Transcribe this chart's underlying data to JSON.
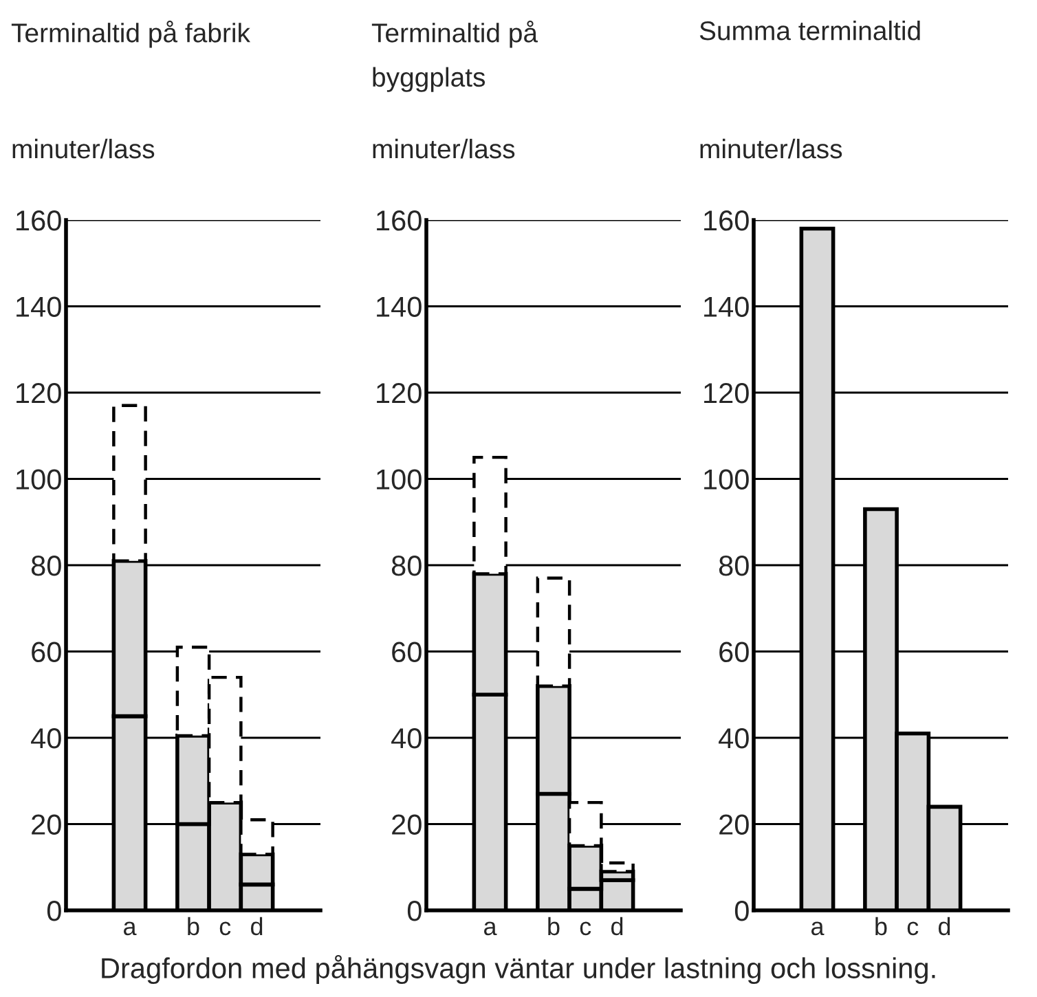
{
  "chart_data": [
    {
      "type": "bar",
      "title": "Terminaltid på fabrik",
      "ylabel": "minuter/lass",
      "categories": [
        "a",
        null,
        "b",
        "c",
        "d"
      ],
      "stacked": true,
      "ylim": [
        0,
        160
      ],
      "yticks": [
        0,
        20,
        40,
        60,
        80,
        100,
        120,
        140,
        160
      ],
      "grid": "y",
      "series": [
        {
          "color": "#d9d9d9",
          "line_style": "solid",
          "values": [
            45,
            null,
            20,
            25,
            6
          ]
        },
        {
          "color": "#d9d9d9",
          "line_style": "solid",
          "values": [
            36,
            null,
            20.5,
            0,
            7
          ]
        },
        {
          "color": "#ffffff",
          "line_style": "dashed",
          "values": [
            36,
            null,
            20.5,
            29,
            8
          ]
        }
      ],
      "annotations": [
        "Dragfordon med påhängsvagn väntar under lastning och lossning."
      ]
    },
    {
      "type": "bar",
      "title": "Terminaltid på\nbyggplats",
      "ylabel": "minuter/lass",
      "categories": [
        "a",
        null,
        "b",
        "c",
        "d"
      ],
      "stacked": true,
      "ylim": [
        0,
        160
      ],
      "yticks": [
        0,
        20,
        40,
        60,
        80,
        100,
        120,
        140,
        160
      ],
      "grid": "y",
      "series": [
        {
          "color": "#d9d9d9",
          "line_style": "solid",
          "values": [
            50,
            null,
            27,
            5,
            7
          ]
        },
        {
          "color": "#d9d9d9",
          "line_style": "solid",
          "values": [
            28,
            null,
            25,
            10,
            2
          ]
        },
        {
          "color": "#ffffff",
          "line_style": "dashed",
          "values": [
            27,
            null,
            25,
            10,
            2
          ]
        }
      ]
    },
    {
      "type": "bar",
      "title": "Summa terminaltid",
      "ylabel": "minuter/lass",
      "categories": [
        "a",
        null,
        "b",
        "c",
        "d"
      ],
      "stacked": true,
      "ylim": [
        0,
        160
      ],
      "yticks": [
        0,
        20,
        40,
        60,
        80,
        100,
        120,
        140,
        160
      ],
      "grid": "y",
      "series": [
        {
          "color": "#d9d9d9",
          "line_style": "solid",
          "values": [
            158,
            null,
            93,
            41,
            24
          ]
        }
      ]
    }
  ]
}
